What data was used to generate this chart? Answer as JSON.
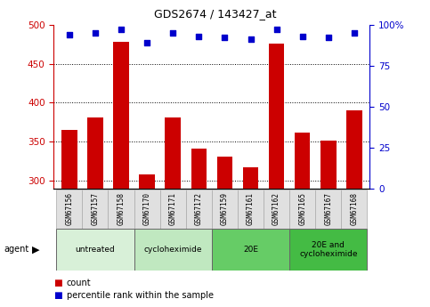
{
  "title": "GDS2674 / 143427_at",
  "samples": [
    "GSM67156",
    "GSM67157",
    "GSM67158",
    "GSM67170",
    "GSM67171",
    "GSM67172",
    "GSM67159",
    "GSM67161",
    "GSM67162",
    "GSM67165",
    "GSM67167",
    "GSM67168"
  ],
  "counts": [
    365,
    381,
    478,
    308,
    381,
    341,
    331,
    318,
    476,
    362,
    352,
    390
  ],
  "percentiles": [
    94,
    95,
    97,
    89,
    95,
    93,
    92,
    91,
    97,
    93,
    92,
    95
  ],
  "ylim_left": [
    290,
    500
  ],
  "ylim_right": [
    0,
    100
  ],
  "yticks_left": [
    300,
    350,
    400,
    450,
    500
  ],
  "yticks_right": [
    0,
    25,
    50,
    75,
    100
  ],
  "bar_color": "#cc0000",
  "dot_color": "#0000cc",
  "left_axis_color": "#cc0000",
  "right_axis_color": "#0000cc",
  "agent_groups": [
    {
      "label": "untreated",
      "start": 0,
      "end": 3,
      "color": "#d8f0d8"
    },
    {
      "label": "cycloheximide",
      "start": 3,
      "end": 6,
      "color": "#c0e8c0"
    },
    {
      "label": "20E",
      "start": 6,
      "end": 9,
      "color": "#66cc66"
    },
    {
      "label": "20E and\ncycloheximide",
      "start": 9,
      "end": 12,
      "color": "#44bb44"
    }
  ]
}
